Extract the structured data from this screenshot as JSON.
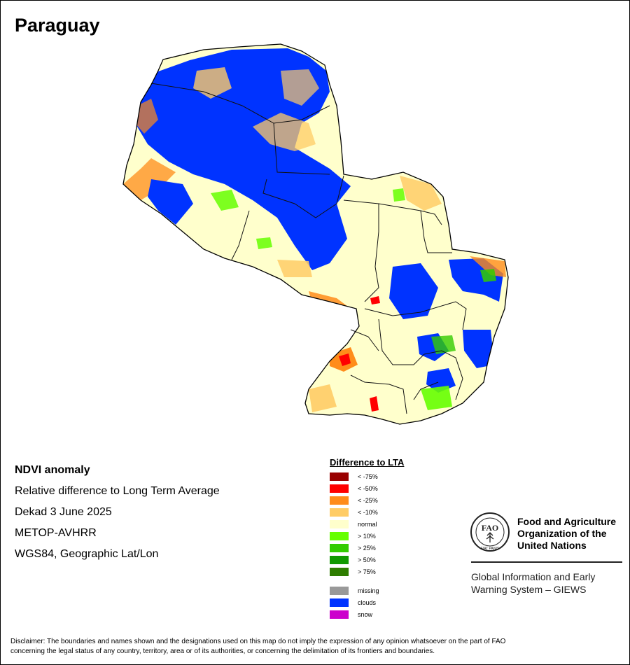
{
  "map_title": "Paraguay",
  "meta": {
    "heading": "NDVI anomaly",
    "line1": "Relative difference to Long Term Average",
    "line2": "Dekad 3 June 2025",
    "line3": "METOP-AVHRR",
    "line4": "WGS84, Geographic Lat/Lon"
  },
  "legend": {
    "title": "Difference to LTA",
    "classes": [
      {
        "label": "< -75%",
        "color": "#990000"
      },
      {
        "label": "< -50%",
        "color": "#ff0000"
      },
      {
        "label": "< -25%",
        "color": "#ff8c1a"
      },
      {
        "label": "< -10%",
        "color": "#ffcc66"
      },
      {
        "label": "normal",
        "color": "#ffffcc"
      },
      {
        "label": "> 10%",
        "color": "#66ff00"
      },
      {
        "label": "> 25%",
        "color": "#33cc00"
      },
      {
        "label": "> 50%",
        "color": "#119900"
      },
      {
        "label": "> 75%",
        "color": "#2e7d00"
      }
    ],
    "other": [
      {
        "label": "missing",
        "color": "#999999"
      },
      {
        "label": "clouds",
        "color": "#0033ff"
      },
      {
        "label": "snow",
        "color": "#cc00cc"
      }
    ]
  },
  "org": {
    "name_line1": "Food and Agriculture",
    "name_line2": "Organization of the",
    "name_line3": "United Nations",
    "logo_letters": "FAO",
    "logo_motto": "FIAT PANIS",
    "system_line1": "Global Information and Early",
    "system_line2": "Warning System – GIEWS"
  },
  "disclaimer_line1": "Disclaimer: The boundaries and names shown and the designations used on this map do not imply the expression of any opinion whatsoever on the part of FAO",
  "disclaimer_line2": "concerning the legal status of any country, territory, area or of its authorities, or concerning the delimitation of its frontiers and boundaries."
}
